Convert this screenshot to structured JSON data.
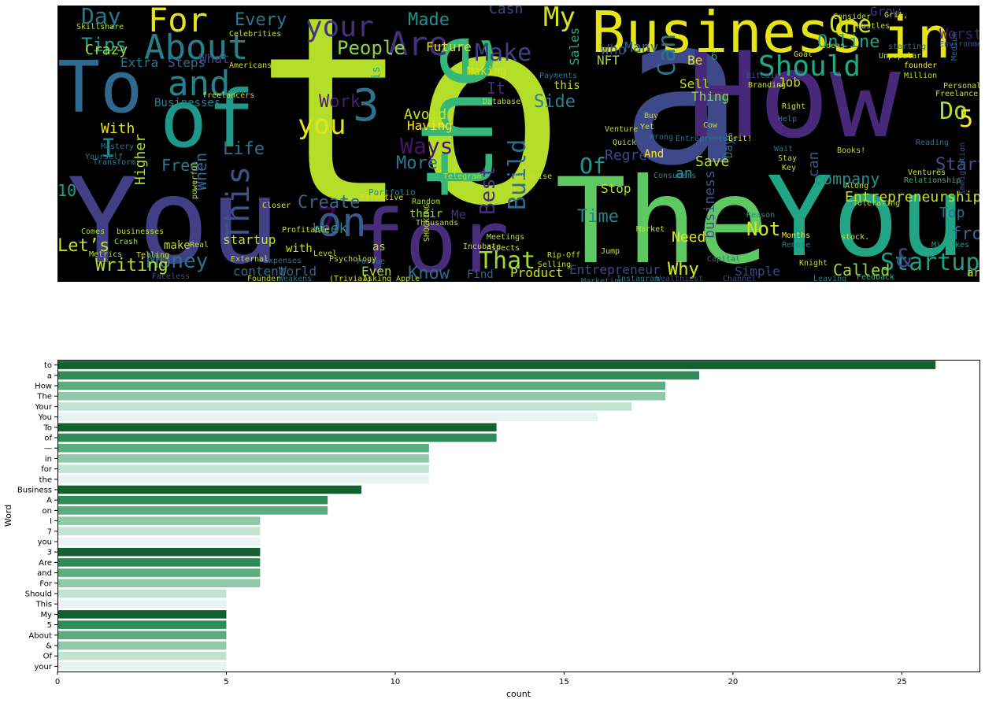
{
  "wordcloud": {
    "words": [
      {
        "text": "to",
        "color": "#b5de2b"
      },
      {
        "text": "a",
        "color": "#3e4989"
      },
      {
        "text": "How",
        "color": "#482878"
      },
      {
        "text": "The",
        "color": "#5ec962"
      },
      {
        "text": "Your",
        "color": "#21a585"
      },
      {
        "text": "You",
        "color": "#433e85"
      },
      {
        "text": "the",
        "color": "#35b779"
      },
      {
        "text": "Business",
        "color": "#e5e419"
      },
      {
        "text": "in",
        "color": "#e5e419"
      },
      {
        "text": "for",
        "color": "#472d7b"
      },
      {
        "text": "To",
        "color": "#31688e"
      },
      {
        "text": "of",
        "color": "#1f988b"
      },
      {
        "text": "About",
        "color": "#277f8e"
      },
      {
        "text": "and",
        "color": "#26828e"
      },
      {
        "text": "For",
        "color": "#e5e419"
      },
      {
        "text": "Are",
        "color": "#472f7d"
      },
      {
        "text": "your",
        "color": "#46337e"
      },
      {
        "text": "Should",
        "color": "#22a884"
      },
      {
        "text": "My",
        "color": "#d8e219"
      },
      {
        "text": "Day",
        "color": "#2a788e"
      },
      {
        "text": "3",
        "color": "#2c728e"
      },
      {
        "text": "7",
        "color": "#440154"
      },
      {
        "text": "on",
        "color": "#365c8d"
      },
      {
        "text": "This",
        "color": "#3b528b"
      },
      {
        "text": "That",
        "color": "#a0da39"
      },
      {
        "text": "Startup",
        "color": "#1f9f88"
      },
      {
        "text": "Money",
        "color": "#2c728e"
      },
      {
        "text": "Build",
        "color": "#2f6c8e"
      },
      {
        "text": "Best",
        "color": "#46307e"
      },
      {
        "text": "Make",
        "color": "#433e85"
      },
      {
        "text": "One",
        "color": "#d0e11c"
      },
      {
        "text": "Do",
        "color": "#addc30"
      },
      {
        "text": "5",
        "color": "#fde725"
      },
      {
        "text": "&",
        "color": "#404688"
      },
      {
        "text": "Not",
        "color": "#d2e21b"
      },
      {
        "text": "Why",
        "color": "#cae11f"
      },
      {
        "text": "Can",
        "color": "#2a788e"
      },
      {
        "text": "I",
        "color": "#25838e"
      },
      {
        "text": "you",
        "color": "#e5e419"
      },
      {
        "text": "People",
        "color": "#8bd646"
      },
      {
        "text": "Made",
        "color": "#20928c"
      },
      {
        "text": "Tips",
        "color": "#1e9c89"
      },
      {
        "text": "Every",
        "color": "#2a788e"
      },
      {
        "text": "Online",
        "color": "#1fa187"
      },
      {
        "text": "Let’s",
        "color": "#c2df23"
      },
      {
        "text": "Writing",
        "color": "#b5de2b"
      },
      {
        "text": "Know",
        "color": "#31688e"
      },
      {
        "text": "Create",
        "color": "#31688e"
      },
      {
        "text": "Work",
        "color": "#481f70"
      },
      {
        "text": "Ways",
        "color": "#481467"
      },
      {
        "text": "More",
        "color": "#2a788e"
      },
      {
        "text": "Life",
        "color": "#2c728e"
      },
      {
        "text": "Free",
        "color": "#2a788e"
      },
      {
        "text": "Of",
        "color": "#1f988b"
      },
      {
        "text": "Side",
        "color": "#26828e"
      },
      {
        "text": "Start",
        "color": "#3b528b"
      },
      {
        "text": "from",
        "color": "#31688e"
      },
      {
        "text": "Entrepreneurship",
        "color": "#c8e020"
      },
      {
        "text": "Time",
        "color": "#26828e"
      },
      {
        "text": "Future",
        "color": "#e5e419"
      },
      {
        "text": "Avoid",
        "color": "#cae11f"
      },
      {
        "text": "When",
        "color": "#31688e"
      },
      {
        "text": "Higher",
        "color": "#b5de2b"
      },
      {
        "text": "Crazy",
        "color": "#a8db34"
      },
      {
        "text": "business",
        "color": "#3b528b"
      },
      {
        "text": "company",
        "color": "#21918c"
      },
      {
        "text": "Need",
        "color": "#e5e419"
      },
      {
        "text": "Called",
        "color": "#a0da39"
      },
      {
        "text": "Top",
        "color": "#2c728e"
      },
      {
        "text": "startup",
        "color": "#c2df23"
      },
      {
        "text": "content",
        "color": "#2c728e"
      },
      {
        "text": "World",
        "color": "#31688e"
      },
      {
        "text": "Even",
        "color": "#a5db36"
      },
      {
        "text": "Product",
        "color": "#d0e11c"
      },
      {
        "text": "Entrepreneur",
        "color": "#3e4989"
      },
      {
        "text": "Simple",
        "color": "#404688"
      },
      {
        "text": "Grow",
        "color": "#46327e"
      },
      {
        "text": "Worst",
        "color": "#482173"
      },
      {
        "text": "Regrets",
        "color": "#3e4989"
      },
      {
        "text": "Save",
        "color": "#b5de2b"
      },
      {
        "text": "Sell",
        "color": "#c2df23"
      },
      {
        "text": "Thing",
        "color": "#8bd646"
      },
      {
        "text": "Job",
        "color": "#c8e020"
      },
      {
        "text": "NFT",
        "color": "#a8db34"
      },
      {
        "text": "Who",
        "color": "#3b528b"
      },
      {
        "text": "Many",
        "color": "#31688e"
      },
      {
        "text": "Sales",
        "color": "#22a884"
      },
      {
        "text": "Cash",
        "color": "#3e4989"
      },
      {
        "text": "Steps",
        "color": "#31688e"
      },
      {
        "text": "Extra",
        "color": "#2a788e"
      },
      {
        "text": "What",
        "color": "#3e4989"
      },
      {
        "text": "With",
        "color": "#e5e419"
      },
      {
        "text": "Businesses",
        "color": "#26828e"
      },
      {
        "text": "Having",
        "color": "#fde725"
      },
      {
        "text": "Making",
        "color": "#d8e219"
      },
      {
        "text": "make",
        "color": "#c2df23"
      },
      {
        "text": "Week",
        "color": "#26828e"
      },
      {
        "text": "their",
        "color": "#8bd646"
      },
      {
        "text": "an",
        "color": "#1f988b"
      },
      {
        "text": "can",
        "color": "#3b528b"
      },
      {
        "text": "as",
        "color": "#c2df23"
      },
      {
        "text": "is",
        "color": "#1fa187"
      },
      {
        "text": "It",
        "color": "#482878"
      },
      {
        "text": "Be",
        "color": "#e5e419"
      },
      {
        "text": "6",
        "color": "#1f988b"
      },
      {
        "text": "And",
        "color": "#fde725"
      },
      {
        "text": "Stop",
        "color": "#b5de2b"
      },
      {
        "text": "Days",
        "color": "#2c728e"
      },
      {
        "text": "10",
        "color": "#1fa187"
      },
      {
        "text": "this",
        "color": "#c2df23"
      },
      {
        "text": "Me",
        "color": "#472d7b"
      },
      {
        "text": "with",
        "color": "#c8e020"
      },
      {
        "text": "Why",
        "color": "#cae11f"
      },
      {
        "text": "are",
        "color": "#d0e11c"
      },
      {
        "text": "Comes",
        "color": "#a0da39"
      },
      {
        "text": "Real",
        "color": "#c2df23"
      },
      {
        "text": "Metrics",
        "color": "#b5de2b"
      },
      {
        "text": "Faceless",
        "color": "#3b528b"
      },
      {
        "text": "Portfolio",
        "color": "#26828e"
      },
      {
        "text": "Effective",
        "color": "#d8e219"
      },
      {
        "text": "Random",
        "color": "#a5db36"
      },
      {
        "text": "Pursue",
        "color": "#2c728e"
      },
      {
        "text": "Selling",
        "color": "#c2df23"
      },
      {
        "text": "Meetings",
        "color": "#b5de2b"
      },
      {
        "text": "Aspects",
        "color": "#c2df23"
      },
      {
        "text": "Jump",
        "color": "#d0e11c"
      },
      {
        "text": "Market",
        "color": "#c8e020"
      },
      {
        "text": "Capital",
        "color": "#31688e"
      },
      {
        "text": "Channel",
        "color": "#3e4989"
      },
      {
        "text": "Leaving",
        "color": "#2a788e"
      },
      {
        "text": "Remote",
        "color": "#26828e"
      },
      {
        "text": "Months",
        "color": "#fde725"
      },
      {
        "text": "Reason",
        "color": "#21918c"
      },
      {
        "text": "Knight",
        "color": "#c2df23"
      },
      {
        "text": "Feedback",
        "color": "#35b779"
      },
      {
        "text": "Mistakes",
        "color": "#1fa187"
      },
      {
        "text": "Relationship",
        "color": "#35b779"
      },
      {
        "text": "Ventures",
        "color": "#d0e11c"
      },
      {
        "text": "Reading",
        "color": "#2c728e"
      },
      {
        "text": "Immigration",
        "color": "#3b528b"
      },
      {
        "text": "Freelance",
        "color": "#c8e020"
      },
      {
        "text": "Medium",
        "color": "#31688e"
      },
      {
        "text": "Million",
        "color": "#c2df23"
      },
      {
        "text": "founder",
        "color": "#fde725"
      },
      {
        "text": "Unpopular",
        "color": "#c8e020"
      },
      {
        "text": "starting",
        "color": "#2c728e"
      },
      {
        "text": "Goal",
        "color": "#d8e219"
      },
      {
        "text": "Ideas",
        "color": "#a5db36"
      },
      {
        "text": "Hustles",
        "color": "#c8e020"
      },
      {
        "text": "Consider",
        "color": "#b5de2b"
      },
      {
        "text": "Grit,",
        "color": "#d0e11c"
      },
      {
        "text": "Environment",
        "color": "#3b528b"
      },
      {
        "text": "Psychology",
        "color": "#c2df23"
      },
      {
        "text": "Expenses",
        "color": "#2c728e"
      },
      {
        "text": "Profitable",
        "color": "#c8e020"
      },
      {
        "text": "Telegram",
        "color": "#b5de2b"
      },
      {
        "text": "Surprise",
        "color": "#c2df23"
      },
      {
        "text": "Incubate",
        "color": "#d0e11c"
      },
      {
        "text": "Thousands",
        "color": "#b5de2b"
      },
      {
        "text": "Consumers",
        "color": "#26828e"
      },
      {
        "text": "Entrepreneurs",
        "color": "#2c728e"
      },
      {
        "text": "Branding",
        "color": "#c2df23"
      },
      {
        "text": "Bitcoin",
        "color": "#3b528b"
      },
      {
        "text": "Personal",
        "color": "#c8e020"
      },
      {
        "text": "Payments",
        "color": "#2a788e"
      },
      {
        "text": "Database",
        "color": "#b5de2b"
      },
      {
        "text": "Skillshare",
        "color": "#b5de2b"
      },
      {
        "text": "Celebrities",
        "color": "#c8e020"
      },
      {
        "text": "freelancers",
        "color": "#c2df23"
      },
      {
        "text": "Americans",
        "color": "#d0e11c"
      },
      {
        "text": "Transform",
        "color": "#26828e"
      },
      {
        "text": "Mastery",
        "color": "#2c728e"
      },
      {
        "text": "Yourself",
        "color": "#2a788e"
      },
      {
        "text": "Crash",
        "color": "#a5db36"
      },
      {
        "text": "businesses",
        "color": "#c2df23"
      },
      {
        "text": "Telling",
        "color": "#c8e020"
      },
      {
        "text": "External",
        "color": "#c2df23"
      },
      {
        "text": "powerful",
        "color": "#b5de2b"
      },
      {
        "text": "Closer",
        "color": "#d8e219"
      },
      {
        "text": "Wealthiest",
        "color": "#3e4989"
      },
      {
        "text": "Marketing",
        "color": "#2c728e"
      },
      {
        "text": "Instagram",
        "color": "#2a788e"
      },
      {
        "text": "SHOCKING",
        "color": "#c2df23"
      },
      {
        "text": "Apple",
        "color": "#b5de2b"
      },
      {
        "text": "Asking",
        "color": "#c8e020"
      },
      {
        "text": "(Trivial)",
        "color": "#d0e11c"
      },
      {
        "text": "Weakens",
        "color": "#2a788e"
      },
      {
        "text": "Founder",
        "color": "#c2df23"
      },
      {
        "text": "Level",
        "color": "#b5de2b"
      },
      {
        "text": "Find",
        "color": "#31688e"
      },
      {
        "text": "Rip-Off",
        "color": "#c8e020"
      },
      {
        "text": "Venture",
        "color": "#c2df23"
      },
      {
        "text": "Quick",
        "color": "#b5de2b"
      },
      {
        "text": "Wrong",
        "color": "#2c728e"
      },
      {
        "text": "Cow",
        "color": "#c8e020"
      },
      {
        "text": "Yet",
        "color": "#d0e11c"
      },
      {
        "text": "Buy",
        "color": "#c2df23"
      },
      {
        "text": "Grit!",
        "color": "#d8e219"
      },
      {
        "text": "Help",
        "color": "#2a788e"
      },
      {
        "text": "Books!",
        "color": "#c2df23"
      },
      {
        "text": "Stay",
        "color": "#b5de2b"
      },
      {
        "text": "Key",
        "color": "#c8e020"
      },
      {
        "text": "Right",
        "color": "#d0e11c"
      },
      {
        "text": "Along",
        "color": "#c2df23"
      },
      {
        "text": "Tolerating",
        "color": "#b5de2b"
      },
      {
        "text": "stock.",
        "color": "#c8e020"
      },
      {
        "text": "Wait",
        "color": "#2c728e"
      }
    ]
  },
  "chart_data": {
    "type": "bar",
    "orientation": "horizontal",
    "categories": [
      "to",
      "a",
      "How",
      "The",
      "Your",
      "You",
      "To",
      "of",
      "—",
      "in",
      "for",
      "the",
      "Business",
      "A",
      "on",
      "I",
      "7",
      "you",
      "3",
      "Are",
      "and",
      "For",
      "Should",
      "This",
      "My",
      "5",
      "About",
      "&",
      "Of",
      "your"
    ],
    "values": [
      26,
      19,
      18,
      18,
      17,
      16,
      13,
      13,
      11,
      11,
      11,
      11,
      9,
      8,
      8,
      6,
      6,
      6,
      6,
      6,
      6,
      6,
      5,
      5,
      5,
      5,
      5,
      5,
      5,
      5
    ],
    "colors": [
      "#13602e",
      "#2e8b57",
      "#5aad7e",
      "#8fc9a9",
      "#c3e3d2",
      "#e8f4f1"
    ],
    "xlabel": "count",
    "ylabel": "Word",
    "xlim": [
      0,
      27.3
    ],
    "xticks": [
      0,
      5,
      10,
      15,
      20,
      25
    ],
    "grid": false
  }
}
